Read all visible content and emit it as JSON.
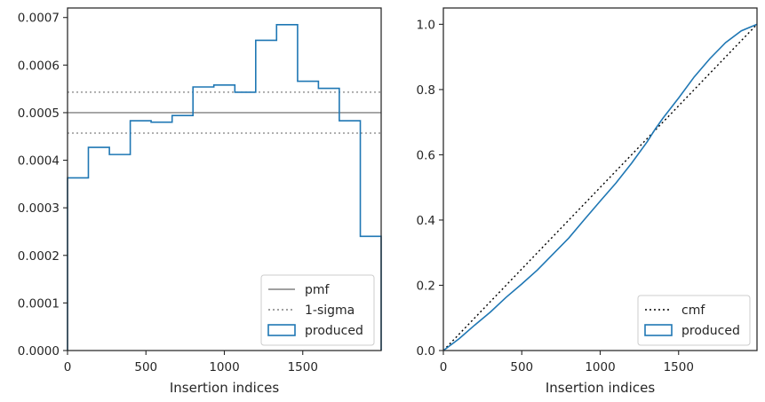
{
  "chart_data": [
    {
      "type": "histogram-step",
      "xlabel": "Insertion indices",
      "ylabel": "",
      "xlim": [
        0,
        2000
      ],
      "ylim": [
        0,
        0.00072
      ],
      "xticks": [
        0,
        500,
        1000,
        1500
      ],
      "yticks": [
        0.0,
        0.0001,
        0.0002,
        0.0003,
        0.0004,
        0.0005,
        0.0006,
        0.0007
      ],
      "ytick_labels": [
        "0.0000",
        "0.0001",
        "0.0002",
        "0.0003",
        "0.0004",
        "0.0005",
        "0.0006",
        "0.0007"
      ],
      "bin_edges": [
        0,
        133,
        267,
        400,
        533,
        667,
        800,
        933,
        1067,
        1200,
        1333,
        1467,
        1600,
        1733,
        1867,
        2000
      ],
      "series": [
        {
          "name": "produced",
          "kind": "step",
          "color": "#1f77b4",
          "values": [
            0.000363,
            0.000427,
            0.000412,
            0.000483,
            0.00048,
            0.000494,
            0.000554,
            0.000558,
            0.000543,
            0.000652,
            0.000685,
            0.000566,
            0.000551,
            0.000483,
            0.00024
          ]
        }
      ],
      "reference_lines": [
        {
          "name": "pmf",
          "y": 0.0005,
          "style": "solid",
          "color": "#808080"
        },
        {
          "name": "1-sigma",
          "y": 0.000543,
          "style": "dotted",
          "color": "#808080"
        },
        {
          "name": "1-sigma",
          "y": 0.000457,
          "style": "dotted",
          "color": "#808080"
        }
      ],
      "legend": {
        "position": "lower-right",
        "entries": [
          {
            "label": "pmf",
            "style": "line-solid",
            "color": "#808080"
          },
          {
            "label": "1-sigma",
            "style": "line-dotted",
            "color": "#808080"
          },
          {
            "label": "produced",
            "style": "patch",
            "color": "#1f77b4"
          }
        ]
      },
      "grid": false
    },
    {
      "type": "line",
      "xlabel": "Insertion indices",
      "ylabel": "",
      "xlim": [
        0,
        2000
      ],
      "ylim": [
        0,
        1.05
      ],
      "xticks": [
        0,
        500,
        1000,
        1500
      ],
      "yticks": [
        0.0,
        0.2,
        0.4,
        0.6,
        0.8,
        1.0
      ],
      "ytick_labels": [
        "0.0",
        "0.2",
        "0.4",
        "0.6",
        "0.8",
        "1.0"
      ],
      "series": [
        {
          "name": "cmf",
          "style": "dotted",
          "color": "#000000",
          "x": [
            0,
            2000
          ],
          "y": [
            0,
            1.0
          ]
        },
        {
          "name": "produced",
          "style": "solid",
          "color": "#1f77b4",
          "x": [
            0,
            100,
            200,
            300,
            400,
            500,
            600,
            700,
            800,
            900,
            1000,
            1100,
            1200,
            1300,
            1350,
            1400,
            1500,
            1600,
            1700,
            1800,
            1900,
            2000
          ],
          "y": [
            0,
            0.036,
            0.078,
            0.118,
            0.163,
            0.204,
            0.247,
            0.296,
            0.345,
            0.402,
            0.458,
            0.513,
            0.574,
            0.64,
            0.678,
            0.712,
            0.774,
            0.839,
            0.895,
            0.944,
            0.98,
            1.0
          ]
        }
      ],
      "legend": {
        "position": "lower-right",
        "entries": [
          {
            "label": "cmf",
            "style": "line-dotted",
            "color": "#000000"
          },
          {
            "label": "produced",
            "style": "patch",
            "color": "#1f77b4"
          }
        ]
      },
      "grid": false
    }
  ]
}
